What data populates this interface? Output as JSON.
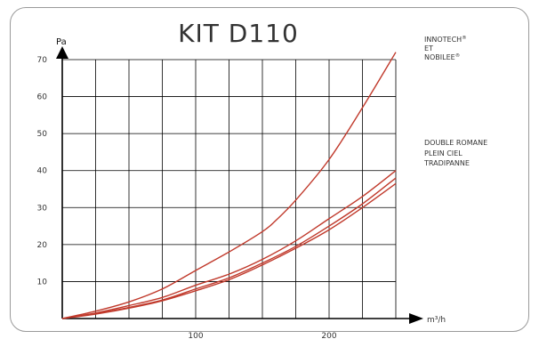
{
  "chart_data": {
    "type": "line",
    "title": "KIT D110",
    "ylabel": "Pa",
    "xlabel": "m³/h",
    "xlim": [
      0,
      260
    ],
    "ylim": [
      0,
      70
    ],
    "y_ticks": [
      10,
      20,
      30,
      40,
      50,
      60,
      70
    ],
    "x_ticks": [
      100,
      200
    ],
    "grid": true,
    "series": [
      {
        "name": "INNOTECH® ET NOBILEE®",
        "label_lines": [
          "INNOTECH",
          "ET",
          "NOBILEE"
        ],
        "label_marks": [
          "®",
          "",
          "®"
        ],
        "x": [
          0,
          25,
          50,
          75,
          100,
          125,
          150,
          160,
          175,
          200,
          225,
          250
        ],
        "y": [
          0,
          2,
          4.5,
          8,
          13,
          18,
          23.5,
          26.5,
          32,
          43,
          57,
          72
        ]
      },
      {
        "name": "DOUBLE ROMANE",
        "label_lines": [
          "DOUBLE ROMANE"
        ],
        "x": [
          0,
          25,
          50,
          75,
          100,
          125,
          150,
          175,
          200,
          225,
          250
        ],
        "y": [
          0,
          1.5,
          3.5,
          5.7,
          9,
          12,
          16,
          21,
          27,
          33,
          40
        ]
      },
      {
        "name": "PLEIN CIEL",
        "label_lines": [
          "PLEIN CIEL"
        ],
        "x": [
          0,
          25,
          50,
          75,
          100,
          125,
          150,
          175,
          200,
          225,
          250
        ],
        "y": [
          0,
          1.3,
          3.0,
          5.0,
          8.0,
          11,
          15,
          19.5,
          25,
          31,
          38
        ]
      },
      {
        "name": "TRADIPANNE",
        "label_lines": [
          "TRADIPANNE"
        ],
        "x": [
          0,
          25,
          50,
          75,
          100,
          125,
          150,
          175,
          200,
          225,
          250
        ],
        "y": [
          0,
          1.2,
          2.8,
          4.8,
          7.5,
          10.5,
          14.5,
          19,
          24,
          30,
          36.5
        ]
      }
    ],
    "colors": {
      "line": "#c0392b",
      "grid": "#000000",
      "axis": "#000000",
      "text": "#333333"
    }
  }
}
